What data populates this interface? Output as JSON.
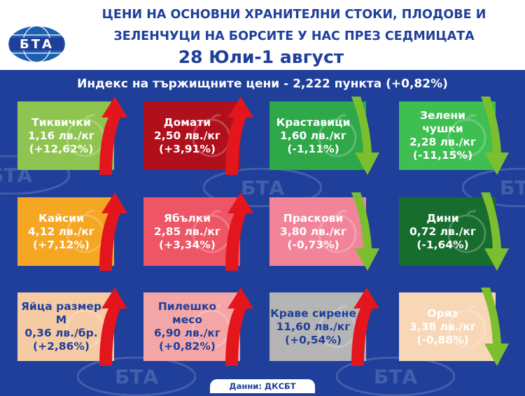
{
  "header": {
    "title_line1": "ЦЕНИ НА ОСНОВНИ ХРАНИТЕЛНИ СТОКИ, ПЛОДОВЕ И",
    "title_line2": "ЗЕЛЕНЧУЦИ НА БОРСИТЕ У НАС ПРЕЗ СЕДМИЦАТА",
    "date_range": "28 Юли-1 август",
    "logo_text": "БТА"
  },
  "index_line": "Индекс на тържищните цени - 2,222 пункта (+0,82%)",
  "items": [
    {
      "name": "Тиквички",
      "price": "1,16 лв./кг",
      "change": "(+12,62%)",
      "trend": "up",
      "color": "#8ec44f",
      "text_color": "#ffffff",
      "icon": "zucchini-icon"
    },
    {
      "name": "Домати",
      "price": "2,50 лв./кг",
      "change": "(+3,91%)",
      "trend": "up",
      "color": "#b0101c",
      "text_color": "#ffffff",
      "icon": "tomato-icon"
    },
    {
      "name": "Краставици",
      "price": "1,60 лв./кг",
      "change": "(-1,11%)",
      "trend": "down",
      "color": "#2fa84a",
      "text_color": "#ffffff",
      "icon": "cucumber-icon"
    },
    {
      "name": "Зелени чушки",
      "price": "2,28 лв./кг",
      "change": "(-11,15%)",
      "trend": "down",
      "color": "#3fbe52",
      "text_color": "#ffffff",
      "icon": "pepper-icon"
    },
    {
      "name": "Кайсии",
      "price": "4,12 лв./кг",
      "change": "(+7,12%)",
      "trend": "up",
      "color": "#f5a623",
      "text_color": "#ffffff",
      "icon": "apricot-icon"
    },
    {
      "name": "Ябълки",
      "price": "2,85 лв./кг",
      "change": "(+3,34%)",
      "trend": "up",
      "color": "#ee5565",
      "text_color": "#ffffff",
      "icon": "apple-icon"
    },
    {
      "name": "Праскови",
      "price": "3,80 лв./кг",
      "change": "(-0,73%)",
      "trend": "down",
      "color": "#f2849a",
      "text_color": "#ffffff",
      "icon": "peach-icon"
    },
    {
      "name": "Дини",
      "price": "0,72 лв./кг",
      "change": "(-1,64%)",
      "trend": "down",
      "color": "#176d2e",
      "text_color": "#ffffff",
      "icon": "watermelon-icon"
    },
    {
      "name": "Яйца размер М",
      "price": "0,36 лв./бр.",
      "change": "(+2,86%)",
      "trend": "up",
      "color": "#f6cba3",
      "text_color": "#1f3f9a",
      "icon": "eggs-icon"
    },
    {
      "name": "Пилешко месо",
      "price": "6,90 лв./кг",
      "change": "(+0,82%)",
      "trend": "up",
      "color": "#f4a6a6",
      "text_color": "#1f3f9a",
      "icon": "chicken-icon"
    },
    {
      "name": "Краве сирене",
      "price": "11,60 лв./кг",
      "change": "(+0,54%)",
      "trend": "up",
      "color": "#b5b5b5",
      "text_color": "#1f3f9a",
      "icon": "cheese-icon"
    },
    {
      "name": "Ориз",
      "price": "3,38 лв./кг",
      "change": "(-0,88%)",
      "trend": "down",
      "color": "#f8d7b6",
      "text_color": "#ffffff",
      "icon": "rice-icon"
    }
  ],
  "arrow_colors": {
    "up": "#e3151d",
    "down": "#7cbf2e"
  },
  "footer": "Данни: ДКСБТ"
}
